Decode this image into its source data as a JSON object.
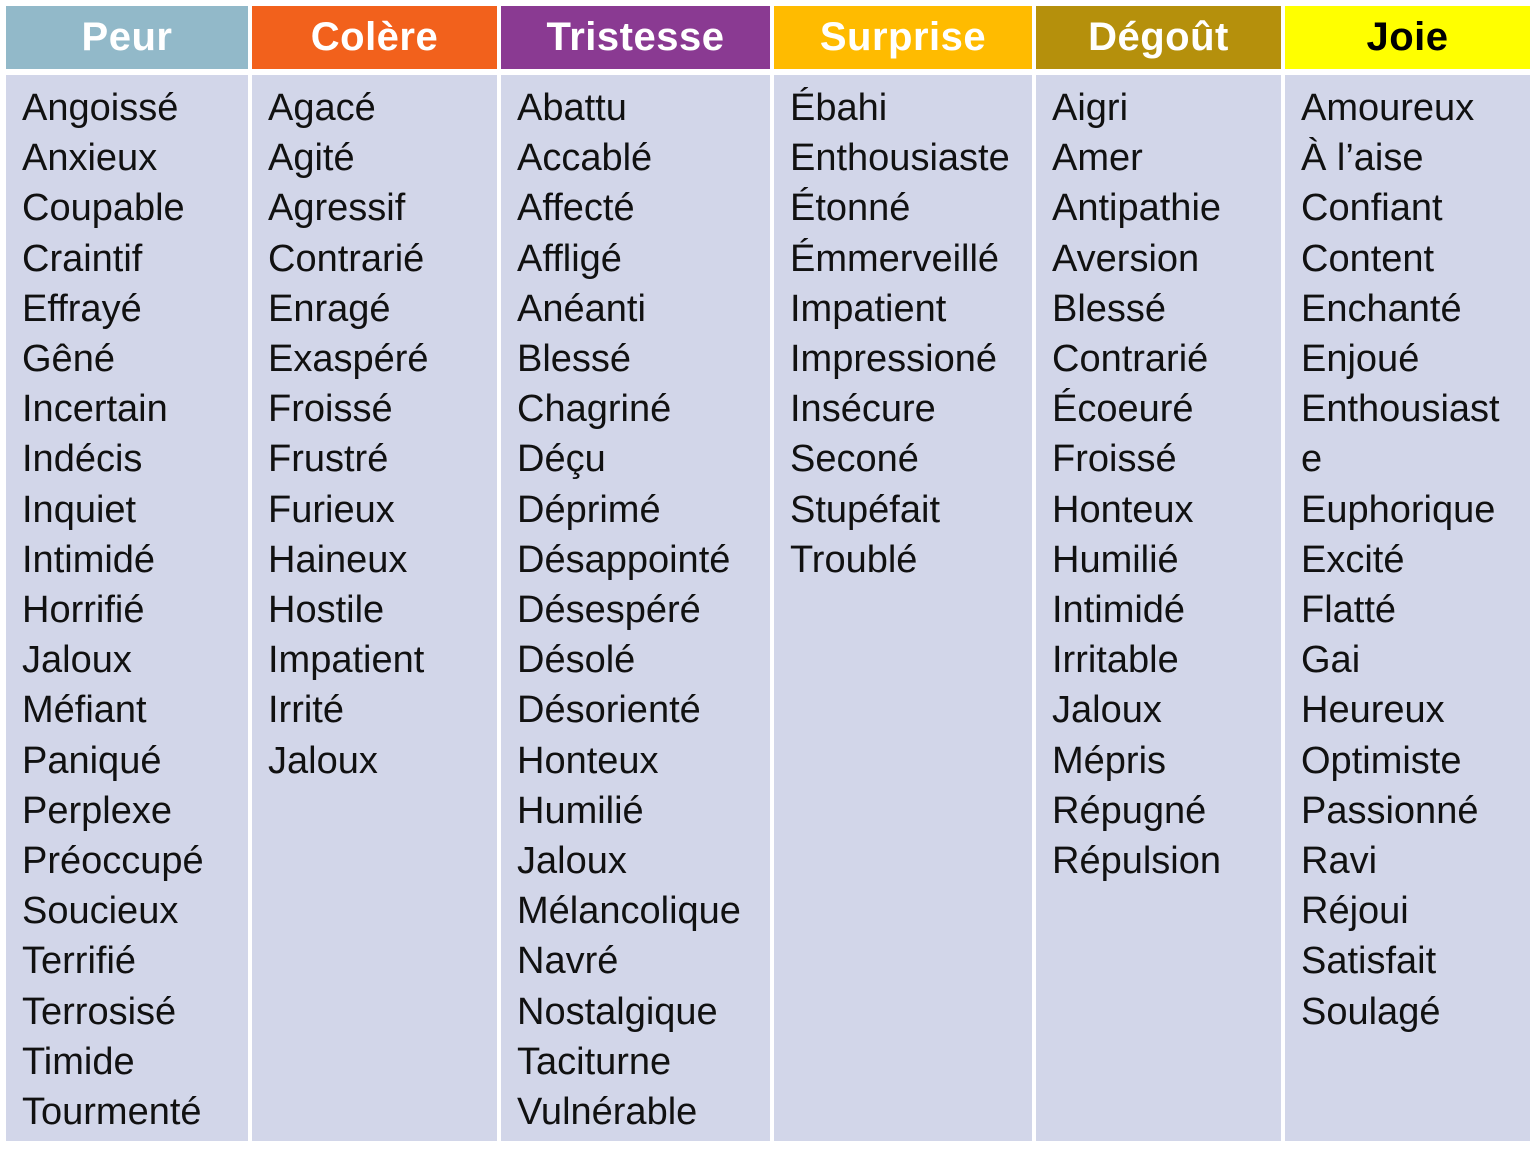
{
  "colors": {
    "page_bg": "#FFFFFF",
    "cell_bg": "#D2D6E9",
    "word_text": "#111111"
  },
  "columns": [
    {
      "label": "Peur",
      "header_bg": "#92B9C9",
      "header_text_color": "#FFFFFF",
      "words": [
        "Angoissé",
        "Anxieux",
        "Coupable",
        "Craintif",
        "Effrayé",
        "Gêné",
        "Incertain",
        "Indécis",
        "Inquiet",
        "Intimidé",
        "Horrifié",
        "Jaloux",
        "Méfiant",
        "Paniqué",
        "Perplexe",
        "Préoccupé",
        "Soucieux",
        "Terrifié",
        "Terrosisé",
        "Timide",
        "Tourmenté"
      ]
    },
    {
      "label": "Colère",
      "header_bg": "#F2611C",
      "header_text_color": "#FFFFFF",
      "words": [
        "Agacé",
        "Agité",
        "Agressif",
        "Contrarié",
        "Enragé",
        "Exaspéré",
        "Froissé",
        "Frustré",
        "Furieux",
        "Haineux",
        "Hostile",
        "Impatient",
        "Irrité",
        "Jaloux"
      ]
    },
    {
      "label": "Tristesse",
      "header_bg": "#8A3A92",
      "header_text_color": "#FFFFFF",
      "words": [
        "Abattu",
        "Accablé",
        "Affecté",
        "Affligé",
        "Anéanti",
        "Blessé",
        "Chagriné",
        "Déçu",
        "Déprimé",
        "Désappointé",
        "Désespéré",
        "Désolé",
        "Désorienté",
        "Honteux",
        "Humilié",
        "Jaloux",
        "Mélancolique",
        "Navré",
        "Nostalgique",
        "Taciturne",
        "Vulnérable"
      ]
    },
    {
      "label": "Surprise",
      "header_bg": "#FFBB00",
      "header_text_color": "#FFFFFF",
      "words": [
        "Ébahi",
        "Enthousiaste",
        "Étonné",
        "Émmerveillé",
        "Impatient",
        "Impressioné",
        "Insécure",
        "Seconé",
        "Stupéfait",
        "Troublé"
      ]
    },
    {
      "label": "Dégoût",
      "header_bg": "#B5900C",
      "header_text_color": "#FFFFFF",
      "words": [
        "Aigri",
        "Amer",
        "Antipathie",
        "Aversion",
        "Blessé",
        "Contrarié",
        "Écoeuré",
        "Froissé",
        "Honteux",
        "Humilié",
        "Intimidé",
        "Irritable",
        "Jaloux",
        "Mépris",
        "Répugné",
        "Répulsion"
      ]
    },
    {
      "label": "Joie",
      "header_bg": "#FFFF00",
      "header_text_color": "#000000",
      "words": [
        "Amoureux",
        "À l’aise",
        "Confiant",
        "Content",
        "Enchanté",
        "Enjoué",
        "Enthousiaste",
        "Euphorique",
        "Excité",
        "Flatté",
        "Gai",
        "Heureux",
        "Optimiste",
        "Passionné",
        "Ravi",
        "Réjoui",
        "Satisfait",
        "Soulagé"
      ]
    }
  ]
}
